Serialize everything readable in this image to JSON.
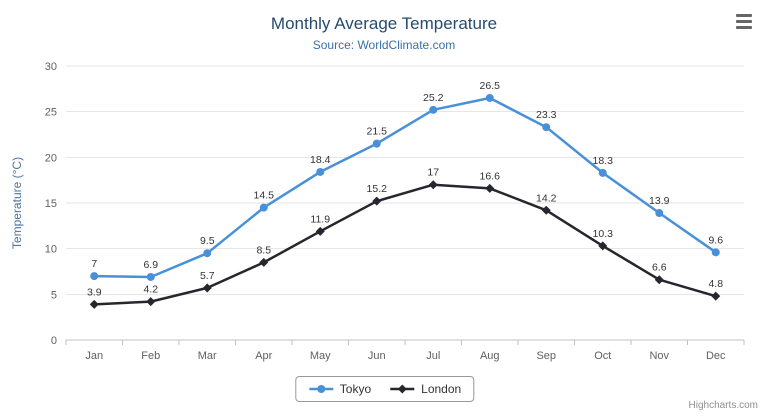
{
  "chart": {
    "title": "Monthly Average Temperature",
    "subtitle": "Source: WorldClimate.com",
    "credits": "Highcharts.com",
    "export_menu_icon": "hamburger-menu"
  },
  "chart_data": {
    "type": "line",
    "title": "Monthly Average Temperature",
    "subtitle": "Source: WorldClimate.com",
    "categories": [
      "Jan",
      "Feb",
      "Mar",
      "Apr",
      "May",
      "Jun",
      "Jul",
      "Aug",
      "Sep",
      "Oct",
      "Nov",
      "Dec"
    ],
    "series": [
      {
        "name": "Tokyo",
        "color": "#4a90d9",
        "marker": "circle",
        "values": [
          7,
          6.9,
          9.5,
          14.5,
          18.4,
          21.5,
          25.2,
          26.5,
          23.3,
          18.3,
          13.9,
          9.6
        ]
      },
      {
        "name": "London",
        "color": "#26262e",
        "marker": "diamond",
        "values": [
          3.9,
          4.2,
          5.7,
          8.5,
          11.9,
          15.2,
          17,
          16.6,
          14.2,
          10.3,
          6.6,
          4.8
        ]
      }
    ],
    "xlabel": "",
    "ylabel": "Temperature (°C)",
    "ylim": [
      0,
      30
    ],
    "yticks": [
      0,
      5,
      10,
      15,
      20,
      25,
      30
    ],
    "grid": true,
    "data_labels": true,
    "legend_position": "bottom-center"
  }
}
